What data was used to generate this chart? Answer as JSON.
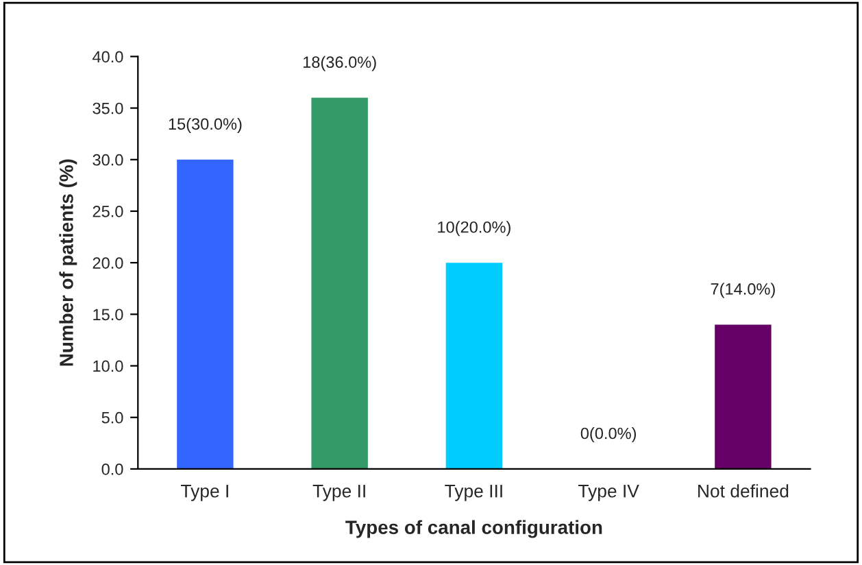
{
  "chart_data": {
    "type": "bar",
    "xlabel": "Types of canal configuration",
    "ylabel": "Number of patients (%)",
    "categories": [
      "Type I",
      "Type II",
      "Type III",
      "Type IV",
      "Not defined"
    ],
    "values": [
      30.0,
      36.0,
      20.0,
      0.0,
      14.0
    ],
    "colors": [
      "#3366ff",
      "#339966",
      "#00ccff",
      "#99cccc",
      "#660066"
    ],
    "value_labels": [
      "15(30.0%)",
      "18(36.0%)",
      "10(20.0%)",
      "0(0.0%)",
      "7(14.0%)"
    ],
    "ylim": [
      0,
      40
    ],
    "yticks": [
      {
        "value": 0,
        "label": "0.0"
      },
      {
        "value": 5,
        "label": "5.0"
      },
      {
        "value": 10,
        "label": "10.0"
      },
      {
        "value": 15,
        "label": "15.0"
      },
      {
        "value": 20,
        "label": "20.0"
      },
      {
        "value": 25,
        "label": "25.0"
      },
      {
        "value": 30,
        "label": "30.0"
      },
      {
        "value": 35,
        "label": "35.0"
      },
      {
        "value": 40,
        "label": "40.0"
      }
    ],
    "grid": false,
    "legend": false
  }
}
